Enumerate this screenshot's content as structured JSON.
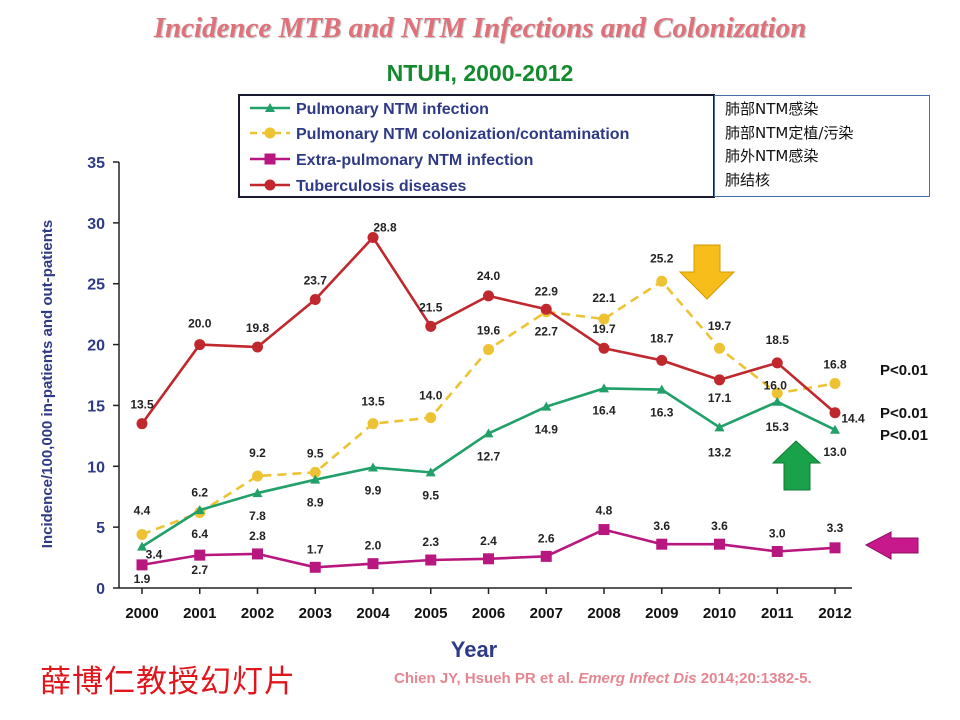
{
  "title": "Incidence MTB and NTM Infections and Colonization",
  "subtitle": "NTUH, 2000-2012",
  "translation_box": {
    "lines": [
      "肺部NTM感染",
      "肺部NTM定植/污染",
      "肺外NTM感染",
      "肺结核"
    ]
  },
  "watermark": "薛博仁教授幻灯片",
  "citation": {
    "authors": "Chien JY, Hsueh PR et al. ",
    "journal": "Emerg Infect Dis",
    "ref": " 2014;20:1382-5."
  },
  "colors": {
    "pulmonary_ntm_infection": "#21a06a",
    "pulmonary_ntm_colonization": "#eec333",
    "extra_pulmonary_ntm": "#b8177f",
    "tuberculosis": "#c0282d",
    "axis_text": "#2f3a86",
    "arrow_yellow": "#f6bd1b",
    "arrow_green": "#1aa24a",
    "arrow_magenta": "#c8198c"
  },
  "chart_data": {
    "type": "line",
    "xlabel": "Year",
    "ylabel": "Incidence/100,000 in-patients and out-patients",
    "x": [
      2000,
      2001,
      2002,
      2003,
      2004,
      2005,
      2006,
      2007,
      2008,
      2009,
      2010,
      2011,
      2012
    ],
    "ylim": [
      0,
      35
    ],
    "yticks": [
      0,
      5,
      10,
      15,
      20,
      25,
      30,
      35
    ],
    "grid": false,
    "legend": "top-left",
    "series": [
      {
        "name": "Pulmonary NTM infection",
        "style": "solid",
        "marker": "triangle",
        "color": "#21a06a",
        "values": [
          3.4,
          6.4,
          7.8,
          8.9,
          9.9,
          9.5,
          12.7,
          14.9,
          16.4,
          16.3,
          13.2,
          15.3,
          13.0
        ],
        "labels": [
          "3.4",
          "6.4",
          "7.8",
          "8.9",
          "9.9",
          "9.5",
          "12.7",
          "14.9",
          "16.4",
          "16.3",
          "13.2",
          "15.3",
          "13.0"
        ]
      },
      {
        "name": "Pulmonary NTM colonization/contamination",
        "style": "dashed",
        "marker": "circle",
        "color": "#eec333",
        "values": [
          4.4,
          6.2,
          9.2,
          9.5,
          13.5,
          14.0,
          19.6,
          22.7,
          22.1,
          25.2,
          19.7,
          16.0,
          16.8
        ],
        "labels": [
          "4.4",
          "6.2",
          "9.2",
          "9.5",
          "13.5",
          "14.0",
          "19.6",
          "22.7",
          "22.1",
          "25.2",
          "19.7",
          "16.0",
          "16.8"
        ]
      },
      {
        "name": "Extra-pulmonary NTM infection",
        "style": "solid",
        "marker": "square",
        "color": "#b8177f",
        "values": [
          1.9,
          2.7,
          2.8,
          1.7,
          2.0,
          2.3,
          2.4,
          2.6,
          4.8,
          3.6,
          3.6,
          3.0,
          3.3
        ],
        "labels": [
          "1.9",
          "2.7",
          "2.8",
          "1.7",
          "2.0",
          "2.3",
          "2.4",
          "2.6",
          "4.8",
          "3.6",
          "3.6",
          "3.0",
          "3.3"
        ]
      },
      {
        "name": "Tuberculosis diseases",
        "style": "solid",
        "marker": "circle",
        "color": "#c0282d",
        "values": [
          13.5,
          20.0,
          19.8,
          23.7,
          28.8,
          21.5,
          24.0,
          22.9,
          19.7,
          18.7,
          17.1,
          18.5,
          14.4
        ],
        "labels": [
          "13.5",
          "20.0",
          "19.8",
          "23.7",
          "28.8",
          "21.5",
          "24.0",
          "22.9",
          "19.7",
          "18.7",
          "17.1",
          "18.5",
          "14.4"
        ]
      }
    ],
    "p_values": [
      "P<0.01",
      "P<0.01",
      "P<0.01"
    ]
  }
}
